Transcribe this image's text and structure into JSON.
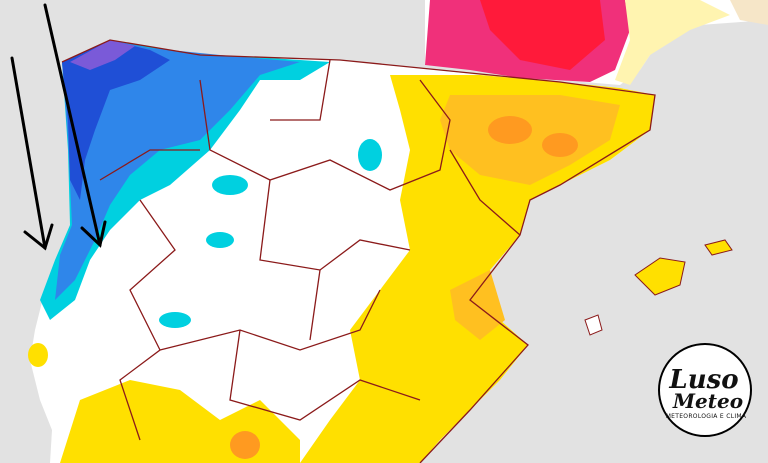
{
  "logo": {
    "line1": "Luso",
    "line2": "Meteo",
    "tagline": "METEOROLOGIA E CLIMA"
  }
}
